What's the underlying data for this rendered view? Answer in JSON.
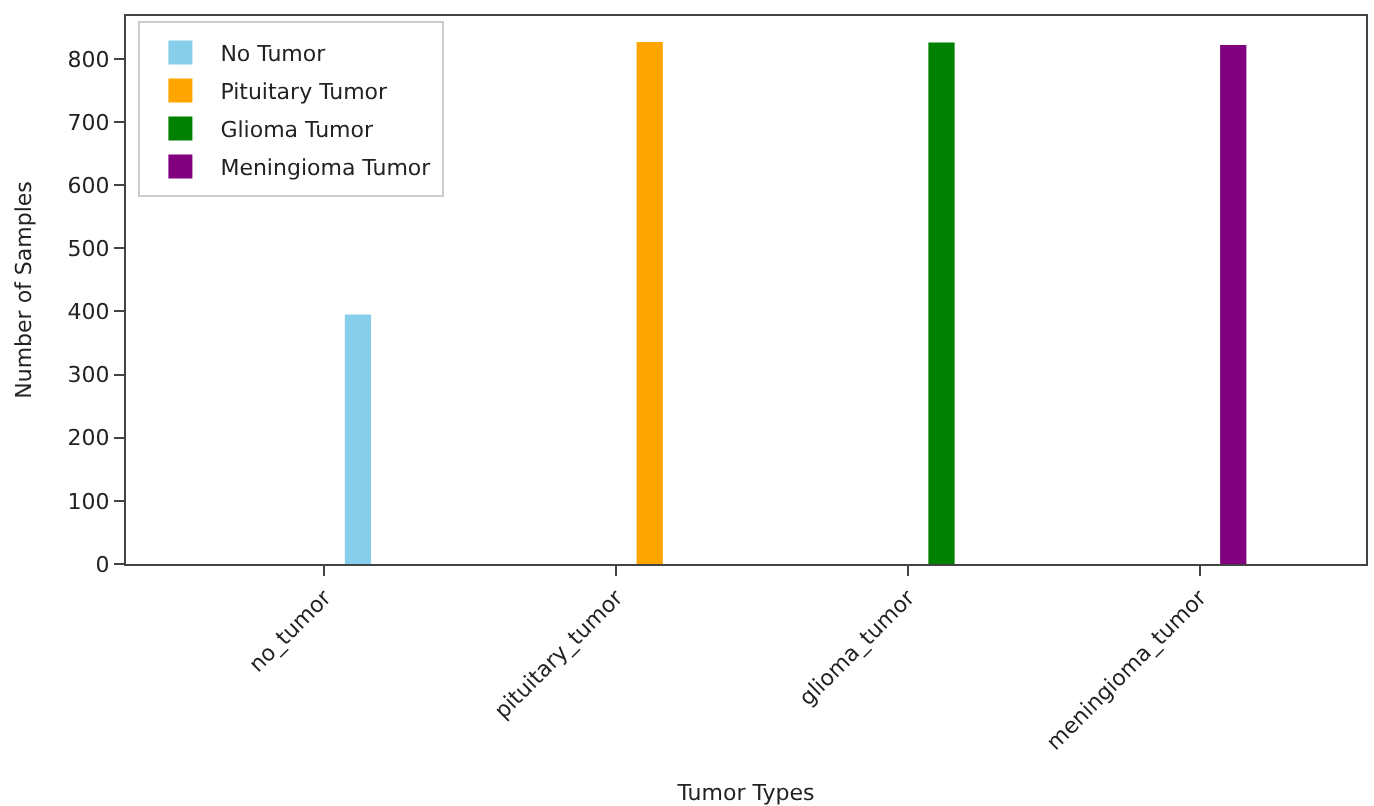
{
  "chart_data": {
    "type": "bar",
    "xlabel": "Tumor Types",
    "ylabel": "Number of Samples",
    "categories": [
      "no_tumor",
      "pituitary_tumor",
      "glioma_tumor",
      "meningioma_tumor"
    ],
    "series": [
      {
        "name": "No Tumor",
        "color": "#87ceeb",
        "values": [
          395,
          null,
          null,
          null
        ]
      },
      {
        "name": "Pituitary Tumor",
        "color": "#ffa500",
        "values": [
          null,
          827,
          null,
          null
        ]
      },
      {
        "name": "Glioma Tumor",
        "color": "#008000",
        "values": [
          null,
          null,
          826,
          null
        ]
      },
      {
        "name": "Meningioma Tumor",
        "color": "#800080",
        "values": [
          null,
          null,
          null,
          822
        ]
      }
    ],
    "ylim": [
      0,
      868
    ],
    "yticks": [
      0,
      100,
      200,
      300,
      400,
      500,
      600,
      700,
      800
    ],
    "legend": "top left"
  }
}
